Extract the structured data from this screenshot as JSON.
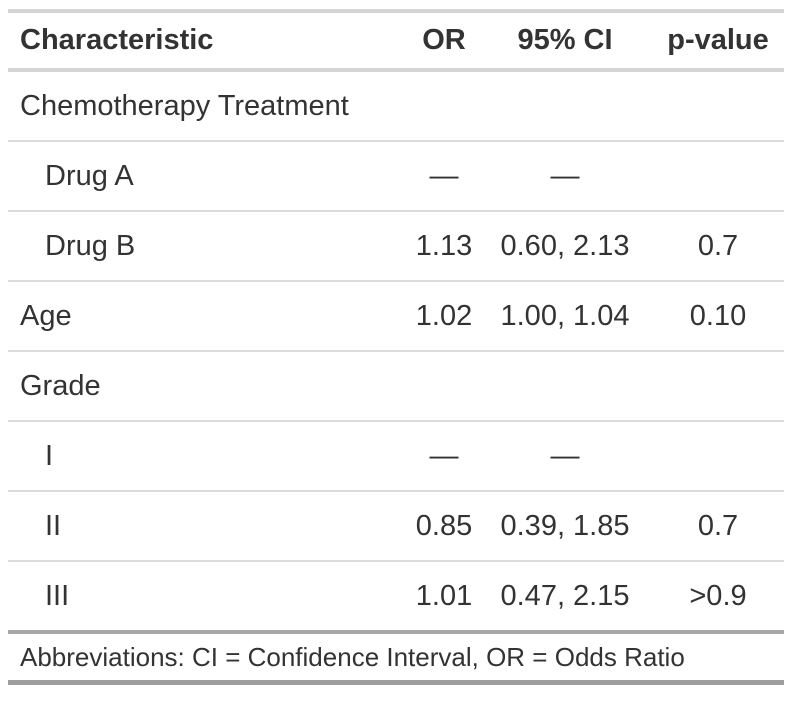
{
  "chart_data": {
    "type": "table",
    "columns": [
      "Characteristic",
      "OR",
      "95% CI",
      "p-value"
    ],
    "rows": [
      [
        "Chemotherapy Treatment",
        "",
        "",
        ""
      ],
      [
        "Drug A",
        "—",
        "—",
        ""
      ],
      [
        "Drug B",
        "1.13",
        "0.60, 2.13",
        "0.7"
      ],
      [
        "Age",
        "1.02",
        "1.00, 1.04",
        "0.10"
      ],
      [
        "Grade",
        "",
        "",
        ""
      ],
      [
        "I",
        "—",
        "—",
        ""
      ],
      [
        "II",
        "0.85",
        "0.39, 1.85",
        "0.7"
      ],
      [
        "III",
        "1.01",
        "0.47, 2.15",
        ">0.9"
      ]
    ],
    "footnote": "Abbreviations: CI = Confidence Interval, OR = Odds Ratio",
    "layout": {
      "label_column_align": "left",
      "data_columns_align": "center",
      "indented_rows": [
        "Drug A",
        "Drug B",
        "I",
        "II",
        "III"
      ]
    }
  },
  "colors": {
    "background": "#ffffff",
    "text": "#333333",
    "border_light": "#d4d4d4",
    "border_row": "#dcdcdc",
    "border_dark": "#a8a8a8",
    "border_bottom": "#9e9e9e"
  }
}
